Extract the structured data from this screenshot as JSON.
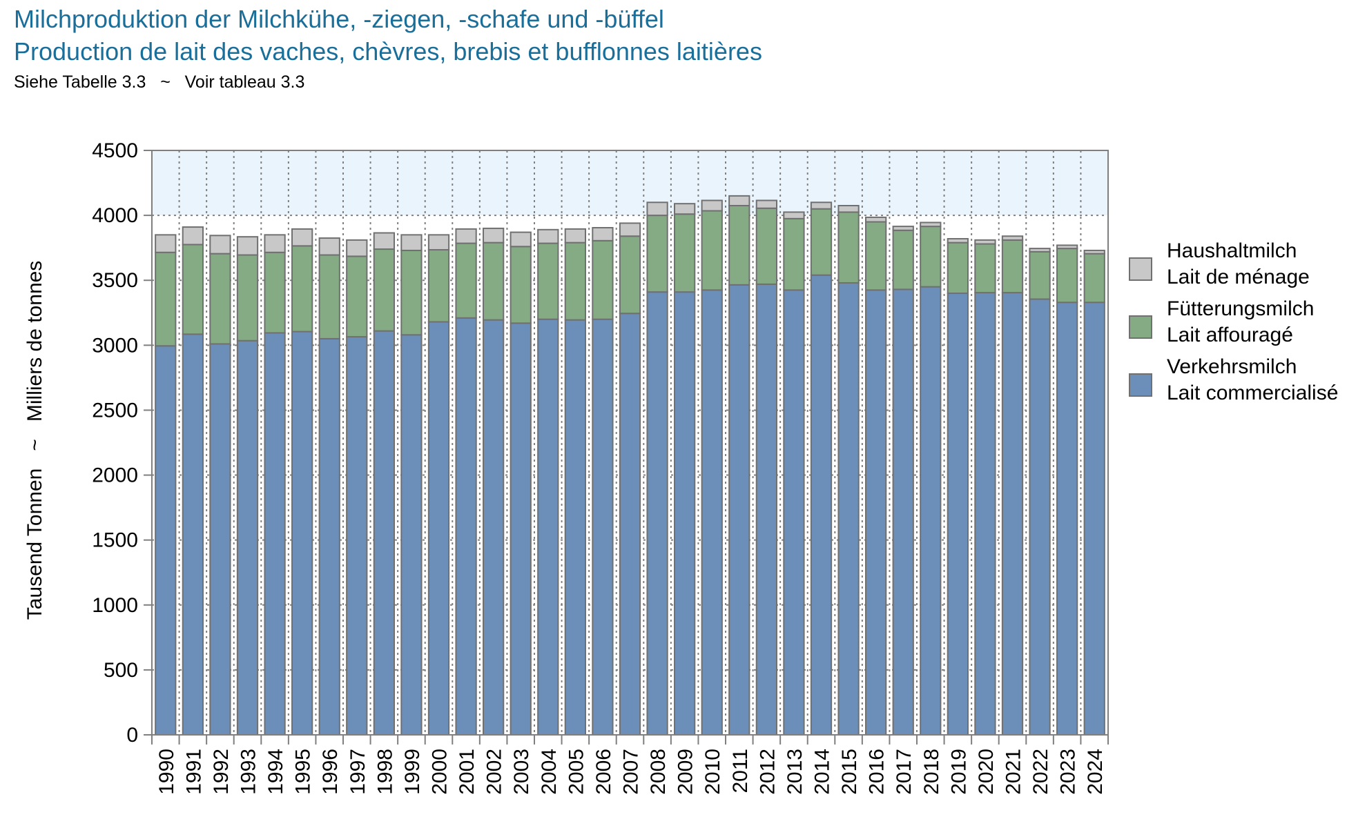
{
  "header": {
    "title_de": "Milchproduktion der Milchkühe, -ziegen, -schafe und -büffel",
    "title_fr": "Production de lait des vaches, chèvres, brebis et bufflonnes laitières",
    "reference": "Siehe Tabelle 3.3   ~   Voir tableau 3.3"
  },
  "colors": {
    "title": "#1a6e9a",
    "highlight_band": "#eaf4fc",
    "grid": "#7f7f7f"
  },
  "chart_data": {
    "type": "bar",
    "stacked": true,
    "ylabel": "Tausend Tonnen   ~   Milliers de tonnes",
    "ylim": [
      0,
      4500
    ],
    "yticks": [
      0,
      500,
      1000,
      1500,
      2000,
      2500,
      3000,
      3500,
      4000,
      4500
    ],
    "grid": true,
    "legend_position": "right",
    "categories": [
      "1990",
      "1991",
      "1992",
      "1993",
      "1994",
      "1995",
      "1996",
      "1997",
      "1998",
      "1999",
      "2000",
      "2001",
      "2002",
      "2003",
      "2004",
      "2005",
      "2006",
      "2007",
      "2008",
      "2009",
      "2010",
      "2011",
      "2012",
      "2013",
      "2014",
      "2015",
      "2016",
      "2017",
      "2018",
      "2019",
      "2020",
      "2021",
      "2022",
      "2023",
      "2024"
    ],
    "series": [
      {
        "key": "verkehrsmilch",
        "name_de": "Verkehrsmilch",
        "name_fr": "Lait commercialisé",
        "color": "#6b8fb8",
        "values": [
          2995,
          3085,
          3010,
          3035,
          3095,
          3105,
          3050,
          3065,
          3110,
          3080,
          3180,
          3210,
          3195,
          3170,
          3200,
          3195,
          3200,
          3245,
          3410,
          3410,
          3425,
          3465,
          3470,
          3425,
          3540,
          3480,
          3425,
          3430,
          3450,
          3400,
          3405,
          3405,
          3355,
          3330,
          3330
        ]
      },
      {
        "key": "fuetterungsmilch",
        "name_de": "Fütterungsmilch",
        "name_fr": "Lait affouragé",
        "color": "#84ab84",
        "values": [
          720,
          690,
          695,
          660,
          620,
          660,
          645,
          620,
          630,
          650,
          555,
          575,
          595,
          590,
          585,
          595,
          605,
          595,
          590,
          600,
          610,
          610,
          585,
          550,
          510,
          545,
          525,
          455,
          465,
          390,
          375,
          405,
          365,
          415,
          375
        ]
      },
      {
        "key": "haushaltmilch",
        "name_de": "Haushaltmilch",
        "name_fr": "Lait de ménage",
        "color": "#c8c8c8",
        "values": [
          135,
          135,
          140,
          140,
          135,
          130,
          130,
          125,
          125,
          120,
          115,
          110,
          110,
          110,
          105,
          105,
          100,
          100,
          100,
          80,
          80,
          75,
          60,
          50,
          50,
          50,
          35,
          30,
          30,
          30,
          30,
          30,
          25,
          25,
          25
        ]
      }
    ]
  }
}
